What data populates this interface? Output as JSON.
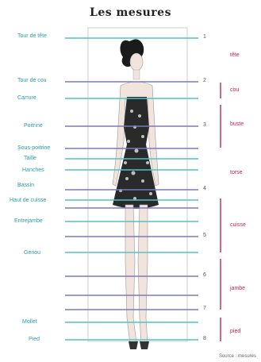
{
  "title": "Les mesures",
  "colors": {
    "cyan_line": "#4fc3c8",
    "purple_line": "#7a78c2",
    "label": "#2a9ca8",
    "segment": "#c1245a",
    "frame": "#cccccc"
  },
  "labels": [
    {
      "text": "Tour de tête"
    },
    {
      "text": "Tour de cou"
    },
    {
      "text": "Carrure"
    },
    {
      "text": "Poitrine"
    },
    {
      "text": "Sous-poitrine"
    },
    {
      "text": "Taille"
    },
    {
      "text": "Hanches"
    },
    {
      "text": "Bassin"
    },
    {
      "text": "Haut de cuisse"
    },
    {
      "text": "Entrejambe"
    },
    {
      "text": "Genou"
    },
    {
      "text": "Mollet"
    },
    {
      "text": "Pied"
    }
  ],
  "tick_numbers": [
    "1",
    "2",
    "3",
    "4",
    "5",
    "6",
    "7",
    "8"
  ],
  "segments": [
    {
      "text": "tête"
    },
    {
      "text": "cou"
    },
    {
      "text": "buste"
    },
    {
      "text": "torse"
    },
    {
      "text": "cuisse"
    },
    {
      "text": "jambe"
    },
    {
      "text": "pied"
    }
  ],
  "footnote": "Source : mesures"
}
